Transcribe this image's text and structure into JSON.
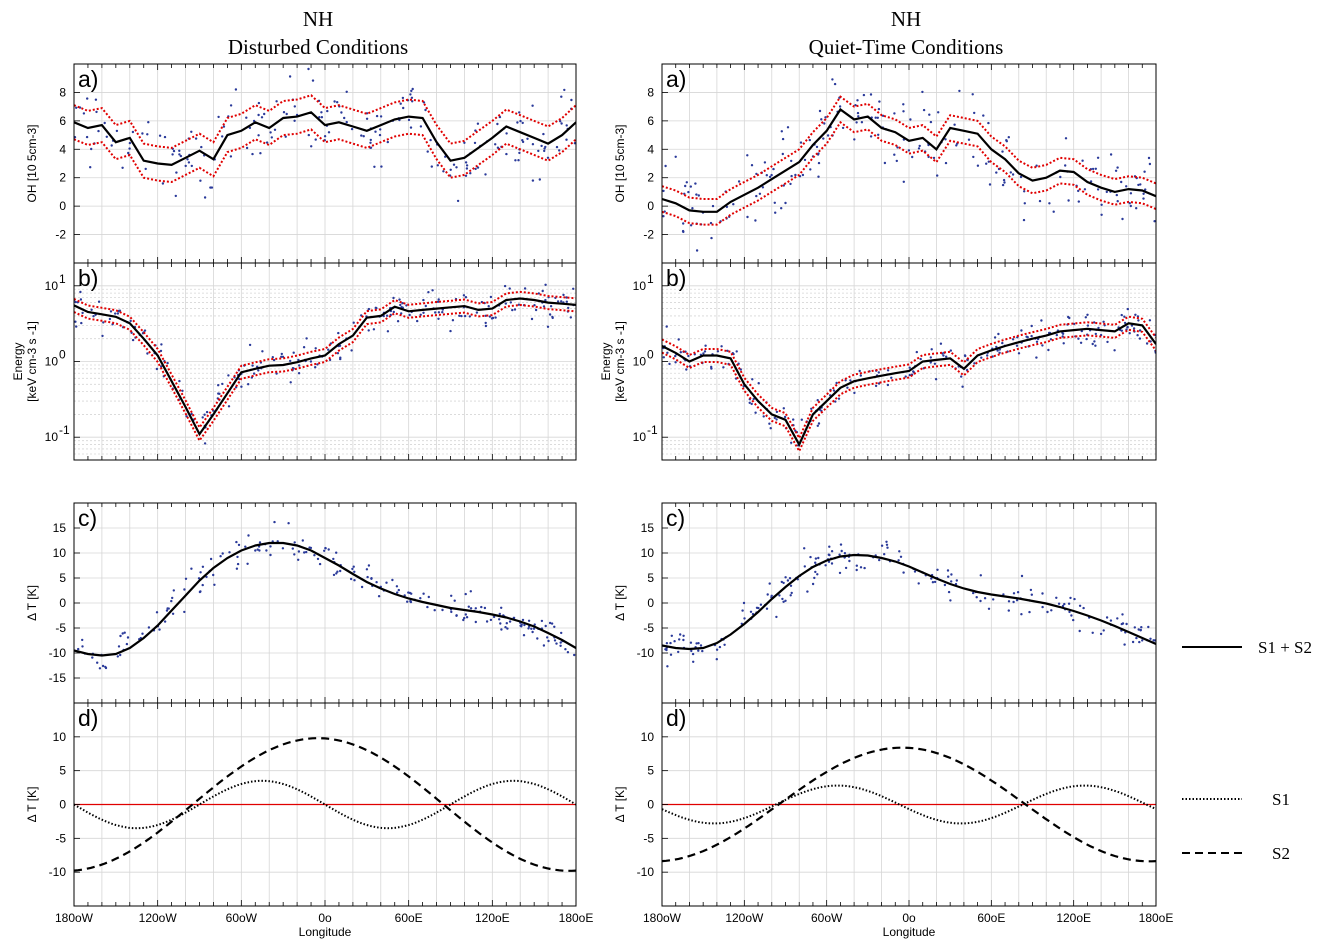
{
  "titles": {
    "left_line1": "NH",
    "left_line2": "Disturbed Conditions",
    "right_line1": "NH",
    "right_line2": "Quiet-Time Conditions"
  },
  "panel_letters": {
    "a": "a)",
    "b": "b)",
    "c": "c)",
    "d": "d)"
  },
  "axis_labels": {
    "oh": "OH [10 5cm-3]",
    "energy_line1": "Energy",
    "energy_line2": "[keV cm-3 s -1]",
    "dT": "Δ T [K]",
    "x": "Longitude"
  },
  "x_ticks": [
    "180oW",
    "120oW",
    "60oW",
    "0o",
    "60oE",
    "120oE",
    "180oE"
  ],
  "legend": {
    "sum": "S1 + S2",
    "s1": "S1",
    "s2": "S2"
  },
  "colors": {
    "mean": "#000000",
    "ci": "#e00000",
    "scatter": "#2a3a9a",
    "zero": "#e00000",
    "grid": "#d6d6d6"
  },
  "chart_data": [
    {
      "type": "line",
      "panel": "a",
      "title": "NH Disturbed Conditions",
      "xlabel": "",
      "ylabel": "OH [10 5cm-3]",
      "xlim": [
        -180,
        180
      ],
      "ylim": [
        -4,
        10
      ],
      "yticks": [
        -2,
        0,
        2,
        4,
        6,
        8
      ],
      "x": [
        -180,
        -170,
        -160,
        -150,
        -140,
        -130,
        -120,
        -110,
        -100,
        -90,
        -80,
        -70,
        -60,
        -50,
        -40,
        -30,
        -20,
        -10,
        0,
        10,
        20,
        30,
        40,
        50,
        60,
        70,
        80,
        90,
        100,
        110,
        120,
        130,
        140,
        150,
        160,
        170,
        180
      ],
      "series": [
        {
          "name": "mean",
          "values": [
            5.9,
            5.5,
            5.7,
            4.5,
            4.8,
            3.2,
            3.0,
            2.9,
            3.4,
            3.9,
            3.3,
            5.0,
            5.3,
            5.9,
            5.5,
            6.2,
            6.3,
            6.6,
            5.7,
            5.9,
            5.6,
            5.3,
            5.7,
            6.1,
            6.3,
            6.2,
            4.5,
            3.2,
            3.4,
            4.1,
            4.8,
            5.6,
            5.2,
            4.8,
            4.4,
            5.0,
            5.9
          ]
        }
      ],
      "ci_halfwidth": 1.2,
      "scatter": "individual measurements (blue dots)"
    },
    {
      "type": "line",
      "panel": "a",
      "title": "NH Quiet-Time Conditions",
      "xlabel": "",
      "ylabel": "OH [10 5cm-3]",
      "xlim": [
        -180,
        180
      ],
      "ylim": [
        -4,
        10
      ],
      "yticks": [
        -2,
        0,
        2,
        4,
        6,
        8
      ],
      "x": [
        -180,
        -170,
        -160,
        -150,
        -140,
        -130,
        -120,
        -110,
        -100,
        -90,
        -80,
        -70,
        -60,
        -50,
        -40,
        -30,
        -20,
        -10,
        0,
        10,
        20,
        30,
        40,
        50,
        60,
        70,
        80,
        90,
        100,
        110,
        120,
        130,
        140,
        150,
        160,
        170,
        180
      ],
      "series": [
        {
          "name": "mean",
          "values": [
            0.5,
            0.2,
            -0.3,
            -0.4,
            -0.4,
            0.3,
            0.8,
            1.3,
            1.9,
            2.5,
            3.1,
            4.3,
            5.3,
            6.8,
            6.1,
            6.3,
            5.5,
            5.2,
            4.6,
            4.8,
            4.0,
            5.5,
            5.3,
            5.1,
            4.0,
            3.3,
            2.3,
            1.8,
            2.0,
            2.5,
            2.4,
            1.7,
            1.3,
            1.0,
            1.2,
            1.1,
            0.7
          ]
        }
      ],
      "ci_halfwidth": 0.9,
      "scatter": "individual measurements (blue dots)"
    },
    {
      "type": "line",
      "panel": "b",
      "xlabel": "",
      "ylabel": "Energy [keV cm-3 s -1]",
      "yscale": "log",
      "xlim": [
        -180,
        180
      ],
      "ylim": [
        0.05,
        20
      ],
      "x": [
        -180,
        -170,
        -160,
        -150,
        -140,
        -130,
        -120,
        -110,
        -100,
        -90,
        -80,
        -70,
        -60,
        -50,
        -40,
        -30,
        -20,
        -10,
        0,
        10,
        20,
        30,
        40,
        50,
        60,
        70,
        80,
        90,
        100,
        110,
        120,
        130,
        140,
        150,
        160,
        170,
        180
      ],
      "series": [
        {
          "name": "mean",
          "values": [
            5.5,
            4.5,
            4.2,
            3.9,
            3.2,
            2.0,
            1.2,
            0.55,
            0.25,
            0.11,
            0.2,
            0.38,
            0.72,
            0.8,
            0.88,
            0.9,
            0.98,
            1.1,
            1.2,
            1.7,
            2.2,
            3.8,
            4.0,
            5.3,
            4.6,
            4.8,
            5.0,
            5.2,
            5.4,
            4.8,
            5.0,
            6.5,
            6.8,
            6.5,
            6.0,
            5.8,
            5.6
          ]
        }
      ],
      "scatter": "individual measurements (blue dots)"
    },
    {
      "type": "line",
      "panel": "b",
      "xlabel": "",
      "ylabel": "Energy [keV cm-3 s -1]",
      "yscale": "log",
      "xlim": [
        -180,
        180
      ],
      "ylim": [
        0.05,
        20
      ],
      "x": [
        -180,
        -170,
        -160,
        -150,
        -140,
        -130,
        -120,
        -110,
        -100,
        -90,
        -80,
        -70,
        -60,
        -50,
        -40,
        -30,
        -20,
        -10,
        0,
        10,
        20,
        30,
        40,
        50,
        60,
        70,
        80,
        90,
        100,
        110,
        120,
        130,
        140,
        150,
        160,
        170,
        180
      ],
      "series": [
        {
          "name": "mean",
          "values": [
            1.6,
            1.3,
            1.0,
            1.2,
            1.2,
            1.1,
            0.5,
            0.3,
            0.2,
            0.17,
            0.08,
            0.2,
            0.3,
            0.45,
            0.55,
            0.6,
            0.65,
            0.7,
            0.75,
            1.0,
            1.05,
            1.1,
            0.8,
            1.2,
            1.4,
            1.6,
            1.8,
            2.0,
            2.2,
            2.5,
            2.6,
            2.7,
            2.6,
            2.5,
            3.2,
            3.0,
            1.7
          ]
        }
      ],
      "scatter": "individual measurements (blue dots)"
    },
    {
      "type": "line",
      "panel": "c",
      "xlabel": "",
      "ylabel": "Δ T [K]",
      "xlim": [
        -180,
        180
      ],
      "ylim": [
        -20,
        20
      ],
      "yticks": [
        -15,
        -10,
        -5,
        0,
        5,
        10,
        15
      ],
      "x": [
        -180,
        -170,
        -160,
        -150,
        -140,
        -130,
        -120,
        -110,
        -100,
        -90,
        -80,
        -70,
        -60,
        -50,
        -40,
        -30,
        -20,
        -10,
        0,
        10,
        20,
        30,
        40,
        50,
        60,
        70,
        80,
        90,
        100,
        110,
        120,
        130,
        140,
        150,
        160,
        170,
        180
      ],
      "series": [
        {
          "name": "S1 + S2",
          "values": [
            -9.5,
            -10.2,
            -10.5,
            -10.2,
            -9.0,
            -7.0,
            -4.5,
            -1.5,
            1.5,
            4.5,
            7.0,
            9.0,
            10.5,
            11.5,
            12.0,
            12.0,
            11.5,
            10.5,
            9.0,
            7.5,
            5.8,
            4.2,
            2.9,
            1.8,
            0.9,
            0.2,
            -0.4,
            -1.0,
            -1.4,
            -1.8,
            -2.3,
            -2.9,
            -3.7,
            -4.7,
            -6.0,
            -7.4,
            -9.0
          ]
        }
      ],
      "scatter": "individual measurements (blue dots)"
    },
    {
      "type": "line",
      "panel": "c",
      "xlabel": "",
      "ylabel": "Δ T [K]",
      "xlim": [
        -180,
        180
      ],
      "ylim": [
        -20,
        20
      ],
      "yticks": [
        -10,
        -5,
        0,
        5,
        10,
        15
      ],
      "x": [
        -180,
        -170,
        -160,
        -150,
        -140,
        -130,
        -120,
        -110,
        -100,
        -90,
        -80,
        -70,
        -60,
        -50,
        -40,
        -30,
        -20,
        -10,
        0,
        10,
        20,
        30,
        40,
        50,
        60,
        70,
        80,
        90,
        100,
        110,
        120,
        130,
        140,
        150,
        160,
        170,
        180
      ],
      "series": [
        {
          "name": "S1 + S2",
          "values": [
            -8.5,
            -9.0,
            -9.2,
            -9.0,
            -8.0,
            -6.3,
            -4.2,
            -1.8,
            0.8,
            3.2,
            5.4,
            7.2,
            8.5,
            9.3,
            9.6,
            9.5,
            9.0,
            8.3,
            7.3,
            6.1,
            4.9,
            3.8,
            2.9,
            2.2,
            1.7,
            1.3,
            0.9,
            0.4,
            -0.1,
            -0.8,
            -1.6,
            -2.5,
            -3.5,
            -4.6,
            -5.8,
            -7.0,
            -8.2
          ]
        }
      ],
      "scatter": "individual measurements (blue dots)"
    },
    {
      "type": "line",
      "panel": "d",
      "xlabel": "Longitude",
      "ylabel": "Δ T [K]",
      "xlim": [
        -180,
        180
      ],
      "ylim": [
        -15,
        15
      ],
      "yticks": [
        -10,
        -5,
        0,
        5,
        10
      ],
      "series": [
        {
          "name": "S1",
          "form": "wavenumber-2 cosine",
          "amplitude": 3.5,
          "peak_lon": -45
        },
        {
          "name": "S2",
          "form": "wavenumber-1 cosine",
          "amplitude": 9.8,
          "peak_lon": -5
        }
      ]
    },
    {
      "type": "line",
      "panel": "d",
      "xlabel": "Longitude",
      "ylabel": "Δ T [K]",
      "xlim": [
        -180,
        180
      ],
      "ylim": [
        -15,
        15
      ],
      "yticks": [
        -10,
        -5,
        0,
        5,
        10
      ],
      "series": [
        {
          "name": "S1",
          "form": "wavenumber-2 cosine",
          "amplitude": 2.8,
          "peak_lon": -52
        },
        {
          "name": "S2",
          "form": "wavenumber-1 cosine",
          "amplitude": 8.4,
          "peak_lon": -5
        }
      ]
    }
  ]
}
